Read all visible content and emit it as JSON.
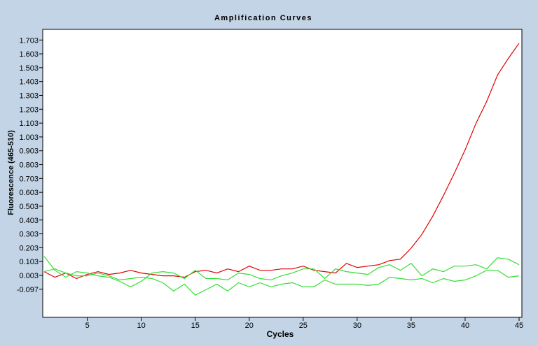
{
  "chart_data": {
    "type": "line",
    "title": "Amplification Curves",
    "xlabel": "Cycles",
    "ylabel": "Fluorescence (465-510)",
    "xlim": [
      1,
      45
    ],
    "ylim": [
      -0.3,
      1.78
    ],
    "x_ticks": [
      5,
      10,
      15,
      20,
      25,
      30,
      35,
      40,
      45
    ],
    "x_tick_labels": [
      "5",
      "10",
      "15",
      "20",
      "25",
      "30",
      "35",
      "40",
      "45"
    ],
    "y_ticks": [
      -0.097,
      0.003,
      0.103,
      0.203,
      0.303,
      0.403,
      0.503,
      0.603,
      0.703,
      0.803,
      0.903,
      1.003,
      1.103,
      1.203,
      1.303,
      1.403,
      1.503,
      1.603,
      1.703
    ],
    "y_tick_labels": [
      "-0.097",
      "0.003",
      "0.103",
      "0.203",
      "0.303",
      "0.403",
      "0.503",
      "0.603",
      "0.703",
      "0.803",
      "0.903",
      "1.003",
      "1.103",
      "1.203",
      "1.303",
      "1.403",
      "1.503",
      "1.603",
      "1.703"
    ],
    "grid": false,
    "x": [
      1,
      2,
      3,
      4,
      5,
      6,
      7,
      8,
      9,
      10,
      11,
      12,
      13,
      14,
      15,
      16,
      17,
      18,
      19,
      20,
      21,
      22,
      23,
      24,
      25,
      26,
      27,
      28,
      29,
      30,
      31,
      32,
      33,
      34,
      35,
      36,
      37,
      38,
      39,
      40,
      41,
      42,
      43,
      44,
      45
    ],
    "series": [
      {
        "color": "#e00000",
        "values": [
          0.03,
          -0.01,
          0.02,
          -0.02,
          0.01,
          0.03,
          0.01,
          0.02,
          0.04,
          0.02,
          0.01,
          0.0,
          0.0,
          -0.01,
          0.03,
          0.04,
          0.02,
          0.05,
          0.03,
          0.07,
          0.04,
          0.04,
          0.05,
          0.05,
          0.07,
          0.04,
          0.03,
          0.02,
          0.09,
          0.06,
          0.07,
          0.08,
          0.11,
          0.12,
          0.2,
          0.3,
          0.43,
          0.58,
          0.74,
          0.91,
          1.1,
          1.26,
          1.45,
          1.57,
          1.68
        ]
      },
      {
        "color": "#33dd33",
        "values": [
          0.14,
          0.04,
          -0.01,
          0.03,
          0.02,
          0.0,
          -0.01,
          -0.04,
          -0.08,
          -0.04,
          0.02,
          0.03,
          0.02,
          -0.02,
          0.04,
          -0.02,
          -0.02,
          -0.03,
          0.02,
          0.01,
          -0.02,
          -0.03,
          0.0,
          0.02,
          0.05,
          0.05,
          -0.02,
          0.05,
          0.03,
          0.02,
          0.01,
          0.06,
          0.08,
          0.04,
          0.09,
          0.0,
          0.05,
          0.03,
          0.07,
          0.07,
          0.08,
          0.05,
          0.13,
          0.12,
          0.08
        ]
      },
      {
        "color": "#33dd33",
        "values": [
          0.03,
          0.05,
          0.02,
          0.0,
          0.0,
          0.02,
          0.0,
          -0.03,
          -0.02,
          -0.01,
          -0.02,
          -0.05,
          -0.11,
          -0.06,
          -0.14,
          -0.1,
          -0.06,
          -0.11,
          -0.05,
          -0.08,
          -0.05,
          -0.08,
          -0.06,
          -0.05,
          -0.08,
          -0.08,
          -0.03,
          -0.06,
          -0.06,
          -0.06,
          -0.07,
          -0.06,
          -0.01,
          -0.02,
          -0.03,
          -0.02,
          -0.05,
          -0.02,
          -0.04,
          -0.03,
          0.0,
          0.04,
          0.04,
          -0.01,
          0.0
        ]
      }
    ]
  }
}
